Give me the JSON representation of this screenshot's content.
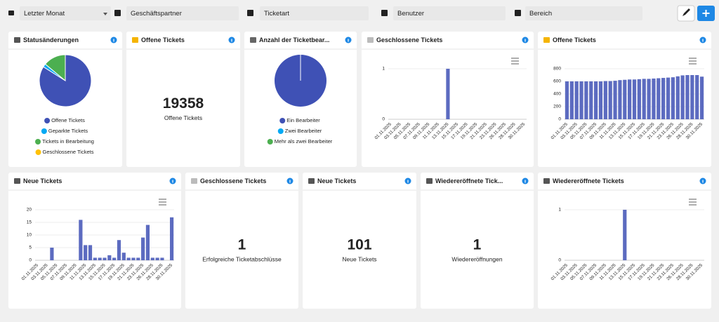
{
  "toolbar": {
    "period": "Letzter Monat",
    "filters": [
      "Geschäftspartner",
      "Ticketart",
      "Benutzer",
      "Bereich"
    ]
  },
  "widgets": [
    {
      "title": "Statusänderungen",
      "chart": {
        "type": "pie",
        "categories": [
          "Offene Tickets",
          "Geparkte Tickets",
          "Tickets in Bearbeitung",
          "Geschlossene Tickets"
        ],
        "values": [
          84,
          2,
          14,
          0
        ],
        "colors": [
          "#3f51b5",
          "#03a9f4",
          "#4caf50",
          "#ffc107"
        ]
      }
    },
    {
      "title": "Offene Tickets",
      "value": 19358,
      "label": "Offene Tickets"
    },
    {
      "title": "Anzahl der Ticketbear...",
      "chart": {
        "type": "pie",
        "categories": [
          "Ein Bearbeiter",
          "Zwei Bearbeiter",
          "Mehr als zwei Bearbeiter"
        ],
        "values": [
          100,
          0,
          0
        ],
        "colors": [
          "#3f51b5",
          "#03a9f4",
          "#4caf50"
        ]
      }
    },
    {
      "title": "Geschlossene Tickets",
      "chart": {
        "type": "bar",
        "color": "#5c6bc0",
        "ylim": [
          0,
          1
        ],
        "yticks": [
          0,
          1
        ],
        "grid": true,
        "categories": [
          "01.11.2025",
          null,
          "03.11.2025",
          null,
          "05.11.2025",
          null,
          "07.11.2025",
          null,
          "09.11.2025",
          null,
          "11.11.2025",
          null,
          "13.11.2025",
          null,
          "15.11.2025",
          null,
          "17.11.2025",
          null,
          "19.11.2025",
          null,
          "21.11.2025",
          null,
          "23.11.2025",
          null,
          "26.11.2025",
          null,
          "28.11.2025",
          null,
          "30.11.2025"
        ],
        "values": [
          0,
          0,
          0,
          0,
          0,
          0,
          0,
          0,
          0,
          0,
          0,
          0,
          1,
          0,
          0,
          0,
          0,
          0,
          0,
          0,
          0,
          0,
          0,
          0,
          0,
          0,
          0,
          0,
          0
        ]
      }
    },
    {
      "title": "Offene Tickets",
      "chart": {
        "type": "bar",
        "color": "#5c6bc0",
        "ylim": [
          0,
          800
        ],
        "yticks": [
          0,
          200,
          400,
          600,
          800
        ],
        "grid": true,
        "categories": [
          "01.11.2025",
          null,
          "03.11.2025",
          null,
          "05.11.2025",
          null,
          "07.11.2025",
          null,
          "09.11.2025",
          null,
          "11.11.2025",
          null,
          "13.11.2025",
          null,
          "15.11.2025",
          null,
          "17.11.2025",
          null,
          "19.11.2025",
          null,
          "21.11.2025",
          null,
          "23.11.2025",
          null,
          "26.11.2025",
          null,
          "28.11.2025",
          null,
          "30.11.2025"
        ],
        "values": [
          600,
          600,
          600,
          600,
          600,
          600,
          600,
          600,
          605,
          605,
          610,
          620,
          625,
          630,
          630,
          635,
          640,
          640,
          645,
          650,
          655,
          660,
          665,
          680,
          695,
          700,
          700,
          700,
          675
        ]
      }
    },
    {
      "title": "Neue Tickets",
      "chart": {
        "type": "bar",
        "color": "#5c6bc0",
        "ylim": [
          0,
          20
        ],
        "yticks": [
          0,
          5,
          10,
          15,
          20
        ],
        "grid": true,
        "categories": [
          "01.11.2025",
          null,
          "03.11.2025",
          null,
          "05.11.2025",
          null,
          "07.11.2025",
          null,
          "09.11.2025",
          null,
          "11.11.2025",
          null,
          "13.11.2025",
          null,
          "15.11.2025",
          null,
          "17.11.2025",
          null,
          "19.11.2025",
          null,
          "21.11.2025",
          null,
          "23.11.2025",
          null,
          "26.11.2025",
          null,
          "28.11.2025",
          null,
          "30.11.2025"
        ],
        "values": [
          0,
          0,
          0,
          5,
          0,
          0,
          0,
          0,
          0,
          16,
          6,
          6,
          1,
          1,
          1,
          2,
          1,
          8,
          3,
          1,
          1,
          1,
          9,
          14,
          1,
          1,
          1,
          0,
          17
        ]
      }
    },
    {
      "title": "Geschlossene Tickets",
      "value": 1,
      "label": "Erfolgreiche Ticketabschlüsse"
    },
    {
      "title": "Neue Tickets",
      "value": 101,
      "label": "Neue Tickets"
    },
    {
      "title": "Wiedereröffnete Tick...",
      "value": 1,
      "label": "Wiedereröffnungen"
    },
    {
      "title": "Wiedereröffnete Tickets",
      "chart": {
        "type": "bar",
        "color": "#5c6bc0",
        "ylim": [
          0,
          1
        ],
        "yticks": [
          0,
          1
        ],
        "grid": true,
        "categories": [
          "01.11.2025",
          null,
          "03.11.2025",
          null,
          "05.11.2025",
          null,
          "07.11.2025",
          null,
          "09.11.2025",
          null,
          "11.11.2025",
          null,
          "13.11.2025",
          null,
          "15.11.2025",
          null,
          "17.11.2025",
          null,
          "19.11.2025",
          null,
          "21.11.2025",
          null,
          "23.11.2025",
          null,
          "26.11.2025",
          null,
          "28.11.2025",
          null,
          "30.11.2025"
        ],
        "values": [
          0,
          0,
          0,
          0,
          0,
          0,
          0,
          0,
          0,
          0,
          0,
          0,
          1,
          0,
          0,
          0,
          0,
          0,
          0,
          0,
          0,
          0,
          0,
          0,
          0,
          0,
          0,
          0,
          0
        ]
      }
    }
  ]
}
